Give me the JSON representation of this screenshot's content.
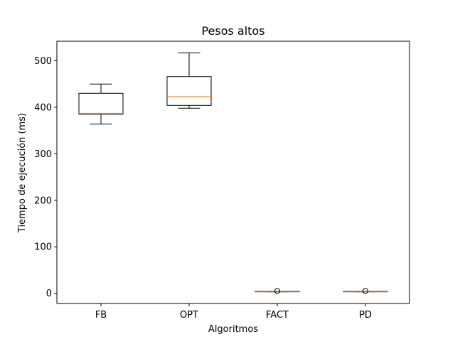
{
  "chart_data": {
    "type": "boxplot",
    "title": "Pesos altos",
    "xlabel": "Algoritmos",
    "ylabel": "Tiempo de ejecución (ms)",
    "ylim": [
      -22,
      542
    ],
    "yticks": [
      0,
      100,
      200,
      300,
      400,
      500
    ],
    "categories": [
      "FB",
      "OPT",
      "FACT",
      "PD"
    ],
    "boxes": [
      {
        "label": "FB",
        "whisker_low": 364,
        "q1": 385,
        "median": 387,
        "q3": 430,
        "whisker_high": 450,
        "outliers": []
      },
      {
        "label": "OPT",
        "whisker_low": 398,
        "q1": 404,
        "median": 423,
        "q3": 466,
        "whisker_high": 517,
        "outliers": []
      },
      {
        "label": "FACT",
        "whisker_low": 3,
        "q1": 3,
        "median": 3,
        "q3": 4,
        "whisker_high": 4,
        "outliers": [
          5
        ]
      },
      {
        "label": "PD",
        "whisker_low": 3,
        "q1": 3,
        "median": 3,
        "q3": 4,
        "whisker_high": 4,
        "outliers": [
          5
        ]
      }
    ],
    "colors": {
      "box": "#000000",
      "median": "#ff7f0e"
    },
    "grid": false,
    "legend": false
  }
}
